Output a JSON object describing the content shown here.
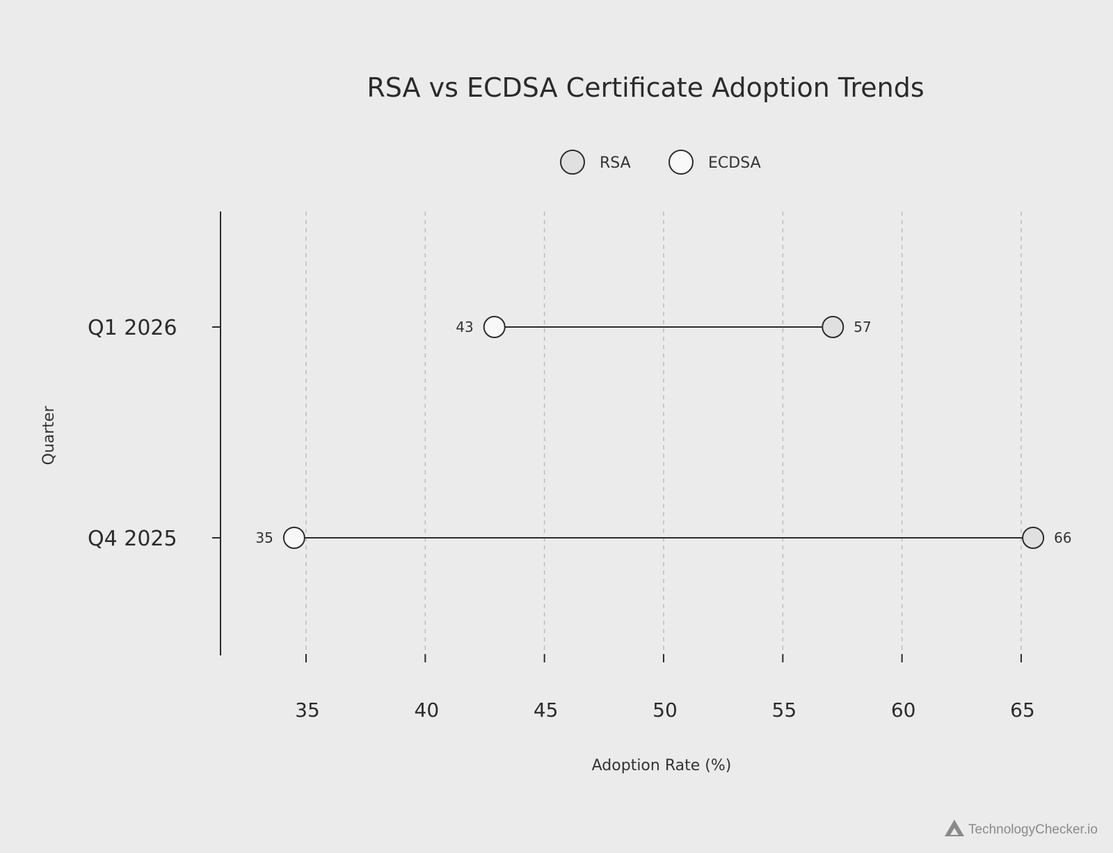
{
  "chart_data": {
    "type": "dumbbell",
    "title": "RSA vs ECDSA Certificate Adoption Trends",
    "xlabel": "Adoption Rate (%)",
    "ylabel": "Quarter",
    "xlim": [
      31.5,
      68
    ],
    "xticks": [
      35,
      40,
      45,
      50,
      55,
      60,
      65
    ],
    "grid": "vertical-dashed",
    "legend_position": "top-center",
    "categories": [
      "Q1 2026",
      "Q4 2025"
    ],
    "series": [
      {
        "name": "RSA",
        "color": "#e0e0e0",
        "values": [
          57,
          66
        ]
      },
      {
        "name": "ECDSA",
        "color": "#f8f8f8",
        "values": [
          43,
          35
        ]
      }
    ],
    "precise_positions": {
      "RSA": [
        57.1,
        65.5
      ],
      "ECDSA": [
        42.9,
        34.5
      ]
    }
  },
  "watermark": {
    "text": "TechnologyChecker.io",
    "icon": "triangle-logo-icon"
  }
}
